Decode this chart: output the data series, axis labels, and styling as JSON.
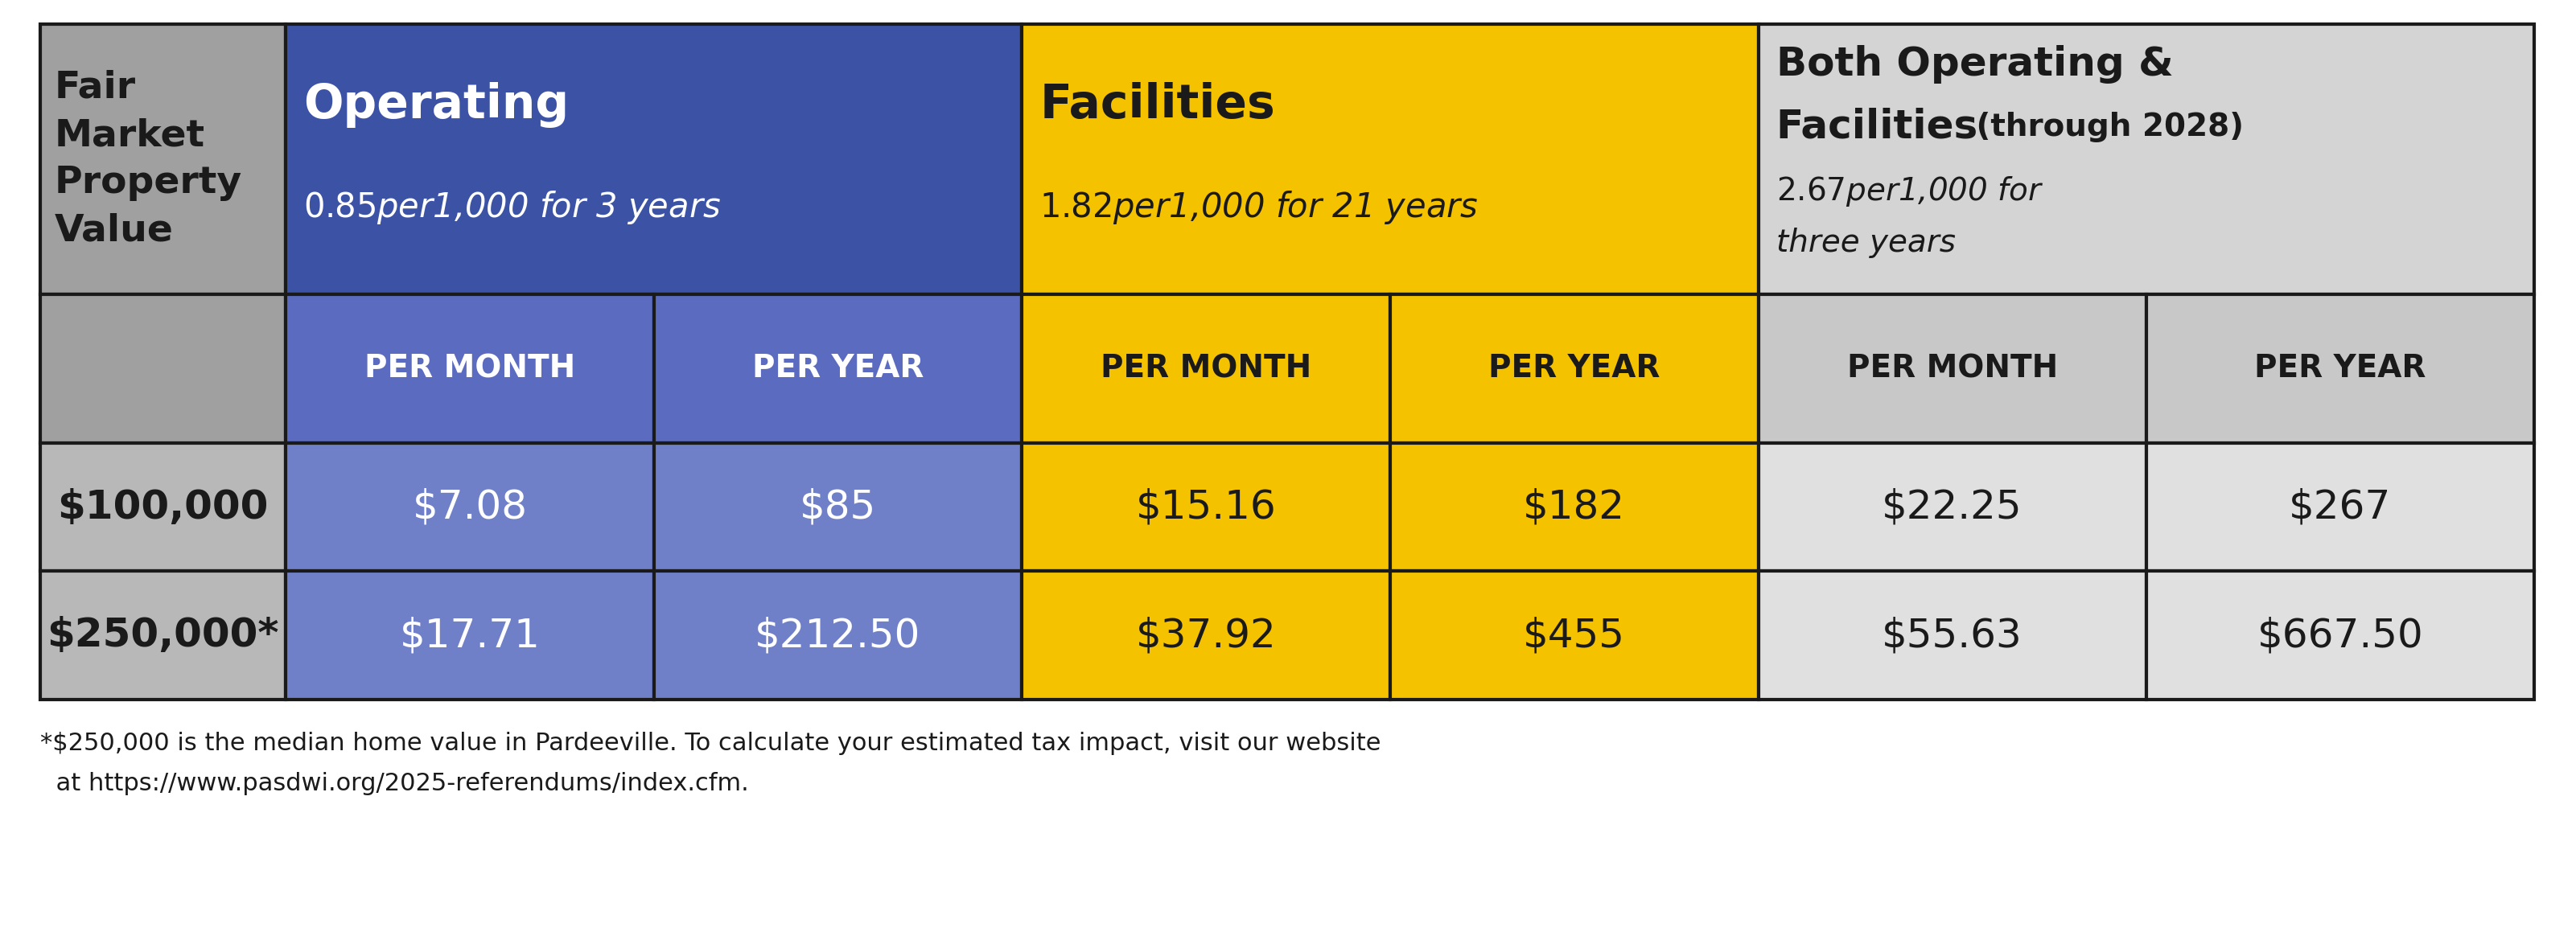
{
  "title_footnote_line1": "*$250,000 is the median home value in Pardeeville. To calculate your estimated tax impact, visit our website",
  "title_footnote_line2": "  at https://www.pasdwi.org/2025-referendums/index.cfm.",
  "col0_bg": "#a0a0a0",
  "col0_text": "Fair\nMarket\nProperty\nValue",
  "col0_fg": "#1a1a1a",
  "op_bg": "#3b52a5",
  "op_fg": "#ffffff",
  "op_bold": "Operating",
  "op_italic": "$0.85 per $1,000 for 3 years",
  "fac_bg": "#f5c200",
  "fac_fg": "#1a1a1a",
  "fac_bold": "Facilities",
  "fac_italic": "$1.82 per $1,000 for 21 years",
  "both_bg": "#d4d4d4",
  "both_fg": "#1a1a1a",
  "both_bold1": "Both Operating &",
  "both_bold2": "Facilities",
  "both_bold3": " (through 2028)",
  "both_italic1": "$2.67 per $1,000 for",
  "both_italic2": "three years",
  "h2_op_bg": "#5b6bbf",
  "h2_op_fg": "#ffffff",
  "h2_fac_bg": "#f5c200",
  "h2_fac_fg": "#1a1a1a",
  "h2_both_bg": "#c8c8c8",
  "h2_both_fg": "#1a1a1a",
  "h2_col0_bg": "#a0a0a0",
  "row1_label": "$100,000",
  "row1_label_bg": "#b8b8b8",
  "row1_label_fg": "#1a1a1a",
  "row1_vals": [
    "$7.08",
    "$85",
    "$15.16",
    "$182",
    "$22.25",
    "$267"
  ],
  "row1_bgs": [
    "#7080c8",
    "#7080c8",
    "#f5c200",
    "#f5c200",
    "#e0e0e0",
    "#e0e0e0"
  ],
  "row1_fgs": [
    "#ffffff",
    "#ffffff",
    "#1a1a1a",
    "#1a1a1a",
    "#1a1a1a",
    "#1a1a1a"
  ],
  "row2_label": "$250,000*",
  "row2_label_bg": "#b8b8b8",
  "row2_label_fg": "#1a1a1a",
  "row2_vals": [
    "$17.71",
    "$212.50",
    "$37.92",
    "$455",
    "$55.63",
    "$667.50"
  ],
  "row2_bgs": [
    "#7080c8",
    "#7080c8",
    "#f5c200",
    "#f5c200",
    "#e0e0e0",
    "#e0e0e0"
  ],
  "row2_fgs": [
    "#ffffff",
    "#ffffff",
    "#1a1a1a",
    "#1a1a1a",
    "#1a1a1a",
    "#1a1a1a"
  ],
  "border_color": "#1a1a1a",
  "bg_color": "#ffffff"
}
